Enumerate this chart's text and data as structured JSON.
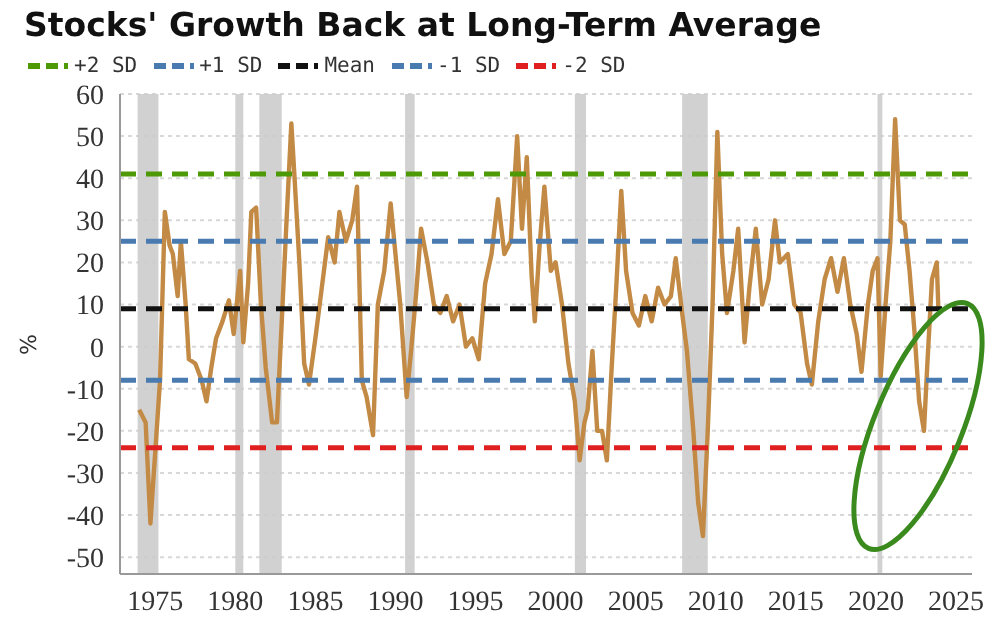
{
  "chart_data": {
    "type": "line",
    "title": "Stocks' Growth Back at Long-Term Average",
    "ylabel": "%",
    "x": [
      1974.0,
      1974.4,
      1974.7,
      1975.0,
      1975.3,
      1975.6,
      1975.9,
      1976.1,
      1976.4,
      1976.6,
      1976.9,
      1977.1,
      1977.5,
      1977.9,
      1978.2,
      1978.5,
      1978.8,
      1979.2,
      1979.6,
      1979.9,
      1980.3,
      1980.5,
      1980.8,
      1981.0,
      1981.3,
      1981.6,
      1981.9,
      1982.3,
      1982.6,
      1982.9,
      1983.2,
      1983.5,
      1983.7,
      1984.0,
      1984.3,
      1984.6,
      1985.0,
      1985.4,
      1985.8,
      1986.2,
      1986.5,
      1986.9,
      1987.3,
      1987.6,
      1987.9,
      1988.2,
      1988.6,
      1988.9,
      1989.3,
      1989.7,
      1990.0,
      1990.3,
      1990.7,
      1991.0,
      1991.3,
      1991.6,
      1992.0,
      1992.4,
      1992.8,
      1993.2,
      1993.6,
      1994.0,
      1994.4,
      1994.8,
      1995.2,
      1995.6,
      1996.0,
      1996.4,
      1996.8,
      1997.2,
      1997.6,
      1997.9,
      1998.2,
      1998.5,
      1998.7,
      1999.0,
      1999.3,
      1999.7,
      2000.0,
      2000.4,
      2000.8,
      2001.2,
      2001.5,
      2001.8,
      2002.0,
      2002.3,
      2002.6,
      2002.9,
      2003.2,
      2003.5,
      2003.8,
      2004.1,
      2004.4,
      2004.8,
      2005.2,
      2005.6,
      2006.0,
      2006.4,
      2006.8,
      2007.2,
      2007.5,
      2007.9,
      2008.2,
      2008.6,
      2008.9,
      2009.2,
      2009.5,
      2009.8,
      2010.1,
      2010.4,
      2010.7,
      2011.1,
      2011.4,
      2011.8,
      2012.1,
      2012.5,
      2012.9,
      2013.3,
      2013.7,
      2014.0,
      2014.5,
      2014.9,
      2015.3,
      2015.7,
      2016.0,
      2016.4,
      2016.8,
      2017.2,
      2017.6,
      2018.0,
      2018.4,
      2018.8,
      2019.1,
      2019.5,
      2019.8,
      2020.1,
      2020.3,
      2020.6,
      2020.9,
      2021.2,
      2021.5,
      2021.8,
      2022.1,
      2022.4,
      2022.7,
      2023.0,
      2023.2,
      2023.5,
      2023.8,
      2023.9
    ],
    "series": [
      {
        "color": "#c28a45",
        "values": [
          -15,
          -18,
          -42,
          -25,
          -8,
          32,
          24,
          22,
          12,
          25,
          10,
          -3,
          -4,
          -8,
          -13,
          -5,
          2,
          6,
          11,
          3,
          18,
          1,
          15,
          32,
          33,
          10,
          -5,
          -18,
          -18,
          6,
          30,
          53,
          40,
          20,
          -4,
          -9,
          2,
          14,
          26,
          20,
          32,
          25,
          30,
          38,
          -8,
          -12,
          -21,
          10,
          18,
          34,
          22,
          10,
          -12,
          0,
          13,
          28,
          20,
          10,
          8,
          12,
          6,
          10,
          0,
          2,
          -3,
          15,
          22,
          35,
          22,
          25,
          50,
          28,
          45,
          17,
          6,
          24,
          38,
          18,
          20,
          10,
          -4,
          -13,
          -27,
          -18,
          -15,
          -1,
          -20,
          -20,
          -27,
          -5,
          15,
          37,
          18,
          8,
          5,
          12,
          6,
          14,
          10,
          12,
          21,
          8,
          -1,
          -20,
          -37,
          -45,
          -20,
          10,
          51,
          22,
          8,
          18,
          28,
          1,
          14,
          28,
          10,
          16,
          30,
          20,
          22,
          10,
          8,
          -4,
          -9,
          6,
          16,
          21,
          13,
          21,
          10,
          3,
          -6,
          10,
          18,
          21,
          -7,
          10,
          25,
          54,
          30,
          29,
          18,
          4,
          -13,
          -20,
          -5,
          16,
          20,
          9
        ]
      }
    ],
    "xlim": [
      1972.8,
      2026
    ],
    "xticks": [
      1975,
      1980,
      1985,
      1990,
      1995,
      2000,
      2005,
      2010,
      2015,
      2020,
      2025
    ],
    "ylim": [
      -54,
      60
    ],
    "yticks": [
      -50,
      -40,
      -30,
      -20,
      -10,
      0,
      10,
      20,
      30,
      40,
      50,
      60
    ],
    "grid": "y",
    "legend": "top",
    "marker": "none",
    "line_style": "solid",
    "ref_lines": [
      {
        "axis": "y",
        "value": 41,
        "label": "+2 SD",
        "color": "#4e9a06",
        "line_style": "dashed"
      },
      {
        "axis": "y",
        "value": 25,
        "label": "+1 SD",
        "color": "#4a7bb0",
        "line_style": "dashed"
      },
      {
        "axis": "y",
        "value": 9,
        "label": "Mean",
        "color": "#111111",
        "line_style": "dashed"
      },
      {
        "axis": "y",
        "value": -8,
        "label": "-1 SD",
        "color": "#4a7bb0",
        "line_style": "dashed"
      },
      {
        "axis": "y",
        "value": -24,
        "label": "-2 SD",
        "color": "#e02020",
        "line_style": "dashed"
      }
    ],
    "bands": [
      {
        "axis": "x",
        "from": 1973.9,
        "to": 1975.2,
        "color": "#cccccc"
      },
      {
        "axis": "x",
        "from": 1980.0,
        "to": 1980.5,
        "color": "#cccccc"
      },
      {
        "axis": "x",
        "from": 1981.5,
        "to": 1982.9,
        "color": "#cccccc"
      },
      {
        "axis": "x",
        "from": 1990.6,
        "to": 1991.2,
        "color": "#cccccc"
      },
      {
        "axis": "x",
        "from": 2001.2,
        "to": 2001.9,
        "color": "#cccccc"
      },
      {
        "axis": "x",
        "from": 2007.9,
        "to": 2009.5,
        "color": "#cccccc"
      },
      {
        "axis": "x",
        "from": 2020.1,
        "to": 2020.4,
        "color": "#cccccc"
      }
    ]
  }
}
